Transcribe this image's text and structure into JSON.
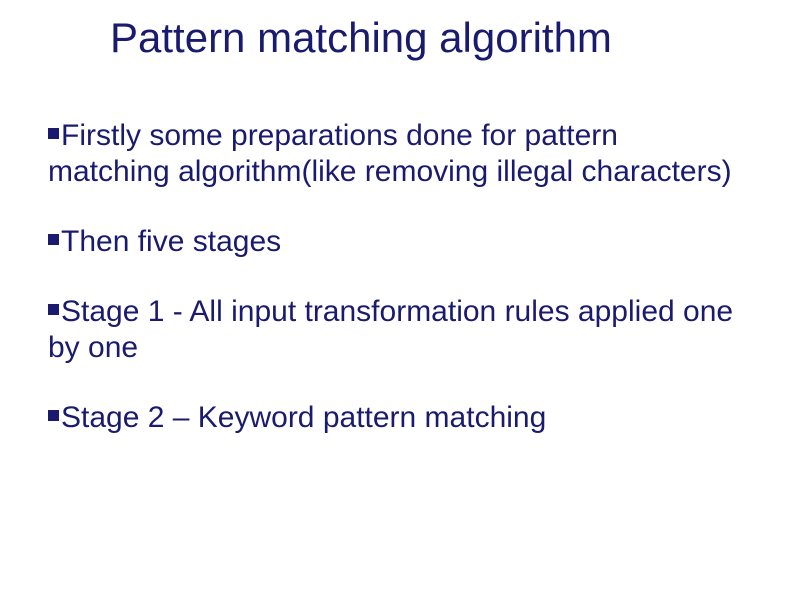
{
  "title": "Pattern matching algorithm",
  "bullets": [
    "Firstly some preparations done for pattern matching algorithm(like removing illegal characters)",
    "Then five stages",
    "Stage 1 - All input transformation rules applied one by one",
    "Stage 2 – Keyword pattern matching"
  ],
  "colors": {
    "text": "#1a1a6e",
    "background": "#ffffff",
    "bullet": "#1a1a6e"
  },
  "fonts": {
    "title_size": 42,
    "body_size": 30,
    "family": "Arial"
  }
}
